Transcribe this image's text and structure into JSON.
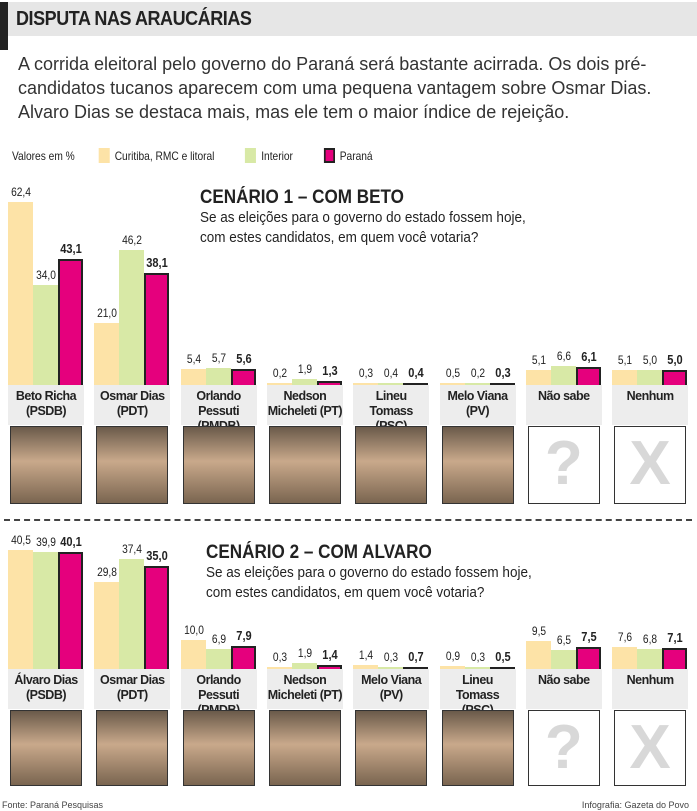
{
  "header": {
    "title": "DISPUTA NAS ARAUCÁRIAS"
  },
  "intro": "A corrida eleitoral pelo governo do Paraná será bastante acirrada. Os dois pré-candidatos tucanos aparecem com uma pequena vantagem sobre Osmar Dias. Alvaro Dias se destaca mais, mas ele tem o maior índice de rejeição.",
  "legend": {
    "unit": "Valores em %",
    "items": [
      "Curitiba, RMC e litoral",
      "Interior",
      "Paraná"
    ]
  },
  "colors": {
    "curitiba": "#fde3a7",
    "interior": "#d8e9a6",
    "parana": "#e5007d"
  },
  "chart_data": [
    {
      "type": "bar",
      "title": "CENÁRIO 1 – COM BETO",
      "subtitle1": "Se as eleições para o governo do estado fossem hoje,",
      "subtitle2": "com estes candidatos, em quem você votaria?",
      "categories": [
        [
          "Beto Richa",
          "(PSDB)"
        ],
        [
          "Osmar Dias",
          "(PDT)"
        ],
        [
          "Orlando Pessuti",
          "(PMDB)"
        ],
        [
          "Nedson",
          "Micheleti (PT)"
        ],
        [
          "Lineu Tomass",
          "(PSC)"
        ],
        [
          "Melo Viana",
          "(PV)"
        ],
        [
          "Não sabe",
          ""
        ],
        [
          "Nenhum",
          ""
        ]
      ],
      "photos": [
        "",
        "",
        "",
        "",
        "",
        "",
        "?",
        "X"
      ],
      "series": [
        {
          "name": "Curitiba, RMC e litoral",
          "values": [
            62.4,
            21.0,
            5.4,
            0.2,
            0.3,
            0.5,
            5.1,
            5.1
          ]
        },
        {
          "name": "Interior",
          "values": [
            34.0,
            46.2,
            5.7,
            1.9,
            0.4,
            0.2,
            6.6,
            5.0
          ]
        },
        {
          "name": "Paraná",
          "values": [
            43.1,
            38.1,
            5.6,
            1.3,
            0.4,
            0.3,
            6.1,
            5.0
          ]
        }
      ],
      "labels": [
        [
          "62,4",
          "21,0",
          "5,4",
          "0,2",
          "0,3",
          "0,5",
          "5,1",
          "5,1"
        ],
        [
          "34,0",
          "46,2",
          "5,7",
          "1,9",
          "0,4",
          "0,2",
          "6,6",
          "5,0"
        ],
        [
          "43,1",
          "38,1",
          "5,6",
          "1,3",
          "0,4",
          "0,3",
          "6,1",
          "5,0"
        ]
      ]
    },
    {
      "type": "bar",
      "title": "CENÁRIO 2 – COM ALVARO",
      "subtitle1": "Se as eleições para o governo do estado fossem hoje,",
      "subtitle2": "com estes candidatos, em quem você votaria?",
      "categories": [
        [
          "Álvaro Dias",
          "(PSDB)"
        ],
        [
          "Osmar Dias",
          "(PDT)"
        ],
        [
          "Orlando Pessuti",
          "(PMDB)"
        ],
        [
          "Nedson",
          "Micheleti (PT)"
        ],
        [
          "Melo Viana",
          "(PV)"
        ],
        [
          "Lineu Tomass",
          "(PSC)"
        ],
        [
          "Não sabe",
          ""
        ],
        [
          "Nenhum",
          ""
        ]
      ],
      "photos": [
        "",
        "",
        "",
        "",
        "",
        "",
        "?",
        "X"
      ],
      "series": [
        {
          "name": "Curitiba, RMC e litoral",
          "values": [
            40.5,
            29.8,
            10.0,
            0.3,
            1.4,
            0.9,
            9.5,
            7.6
          ]
        },
        {
          "name": "Interior",
          "values": [
            39.9,
            37.4,
            6.9,
            1.9,
            0.3,
            0.3,
            6.5,
            6.8
          ]
        },
        {
          "name": "Paraná",
          "values": [
            40.1,
            35.0,
            7.9,
            1.4,
            0.7,
            0.5,
            7.5,
            7.1
          ]
        }
      ],
      "labels": [
        [
          "40,5",
          "29,8",
          "10,0",
          "0,3",
          "1,4",
          "0,9",
          "9,5",
          "7,6"
        ],
        [
          "39,9",
          "37,4",
          "6,9",
          "1,9",
          "0,3",
          "0,3",
          "6,5",
          "6,8"
        ],
        [
          "40,1",
          "35,0",
          "7,9",
          "1,4",
          "0,7",
          "0,5",
          "7,5",
          "7,1"
        ]
      ]
    }
  ],
  "footer": {
    "source": "Fonte: Paraná Pesquisas",
    "credit": "Infografia: Gazeta do Povo"
  }
}
